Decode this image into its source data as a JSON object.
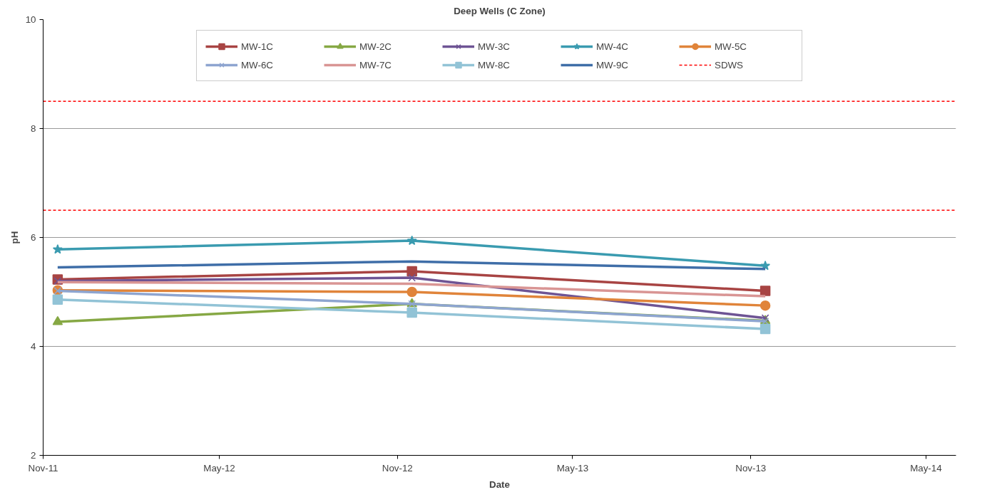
{
  "chart_data": {
    "type": "line",
    "title": "Deep Wells (C Zone)",
    "xlabel": "Date",
    "ylabel": "pH",
    "x": [
      "2011-11-16",
      "2012-11-16",
      "2013-11-16"
    ],
    "series": [
      {
        "name": "MW-1C",
        "color": "#a84443",
        "marker": "square",
        "values": [
          5.23,
          5.38,
          5.02
        ]
      },
      {
        "name": "MW-2C",
        "color": "#86a844",
        "marker": "triangle",
        "values": [
          4.45,
          4.78,
          4.47
        ]
      },
      {
        "name": "MW-3C",
        "color": "#6e5494",
        "marker": "cross",
        "values": [
          5.2,
          5.26,
          4.52
        ]
      },
      {
        "name": "MW-4C",
        "color": "#3a9bb0",
        "marker": "star",
        "values": [
          5.78,
          5.94,
          5.48
        ]
      },
      {
        "name": "MW-5C",
        "color": "#e0843a",
        "marker": "circle",
        "values": [
          5.03,
          5.0,
          4.75
        ]
      },
      {
        "name": "MW-6C",
        "color": "#8ea5d0",
        "marker": "cross",
        "values": [
          5.02,
          4.78,
          4.46
        ]
      },
      {
        "name": "MW-7C",
        "color": "#d99594",
        "marker": "none",
        "values": [
          5.18,
          5.15,
          4.92
        ]
      },
      {
        "name": "MW-8C",
        "color": "#92c3d6",
        "marker": "square",
        "values": [
          4.86,
          4.62,
          4.32
        ]
      },
      {
        "name": "MW-9C",
        "color": "#3f6ea8",
        "marker": "none",
        "values": [
          5.45,
          5.56,
          5.42
        ]
      }
    ],
    "ref_lines": [
      {
        "axis": "y",
        "value": 8.5,
        "label": "SDWS",
        "color": "#ff0000",
        "line_style": "dashed"
      },
      {
        "axis": "y",
        "value": 6.5,
        "color": "#ff0000",
        "line_style": "dashed"
      }
    ],
    "xlim": [
      "2011-11-01",
      "2014-06-01"
    ],
    "xticks": [
      {
        "value": "2011-11-01",
        "label": "Nov-11"
      },
      {
        "value": "2012-05-01",
        "label": "May-12"
      },
      {
        "value": "2012-11-01",
        "label": "Nov-12"
      },
      {
        "value": "2013-05-01",
        "label": "May-13"
      },
      {
        "value": "2013-11-01",
        "label": "Nov-13"
      },
      {
        "value": "2014-05-01",
        "label": "May-14"
      }
    ],
    "ylim": [
      2,
      10
    ],
    "yticks": [
      2,
      4,
      6,
      8,
      10
    ],
    "grid": "y",
    "legend": "top"
  }
}
